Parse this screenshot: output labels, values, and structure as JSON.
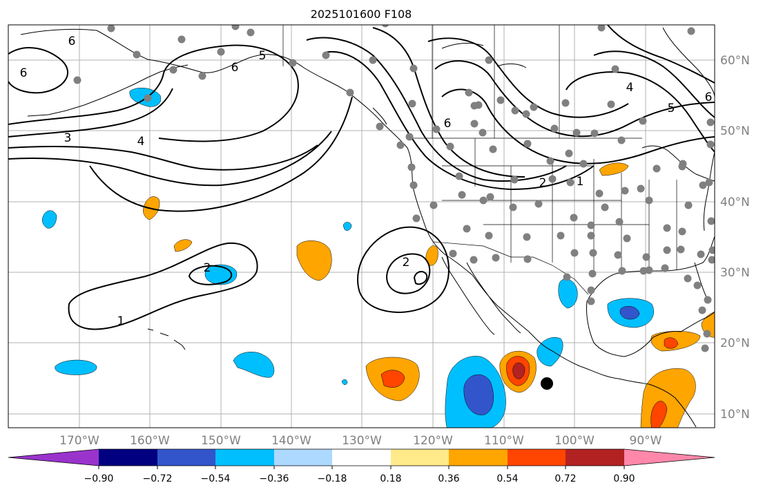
{
  "title": "2025101600 F108",
  "map": {
    "lon_labels": [
      "170°W",
      "160°W",
      "150°W",
      "140°W",
      "130°W",
      "120°W",
      "110°W",
      "100°W",
      "90°W"
    ],
    "lat_labels": [
      "60°N",
      "50°N",
      "40°N",
      "30°N",
      "20°N",
      "10°N"
    ],
    "contour_labels": [
      "6",
      "6",
      "6",
      "5",
      "3",
      "4",
      "2",
      "2",
      "1",
      "6",
      "4",
      "5",
      "6",
      "2",
      "1"
    ],
    "contour_color": "#000000",
    "station_color": "#808080",
    "marker_color": "#000000"
  },
  "colorbar": {
    "tick_labels": [
      "−0.90",
      "−0.72",
      "−0.54",
      "−0.36",
      "−0.18",
      "0.18",
      "0.36",
      "0.54",
      "0.72",
      "0.90"
    ],
    "colors": [
      "#9933cc",
      "#000080",
      "#3355cc",
      "#00bfff",
      "#add8ff",
      "#ffffff",
      "#ffea8a",
      "#ffa500",
      "#ff4500",
      "#b22222",
      "#ff88aa"
    ]
  }
}
